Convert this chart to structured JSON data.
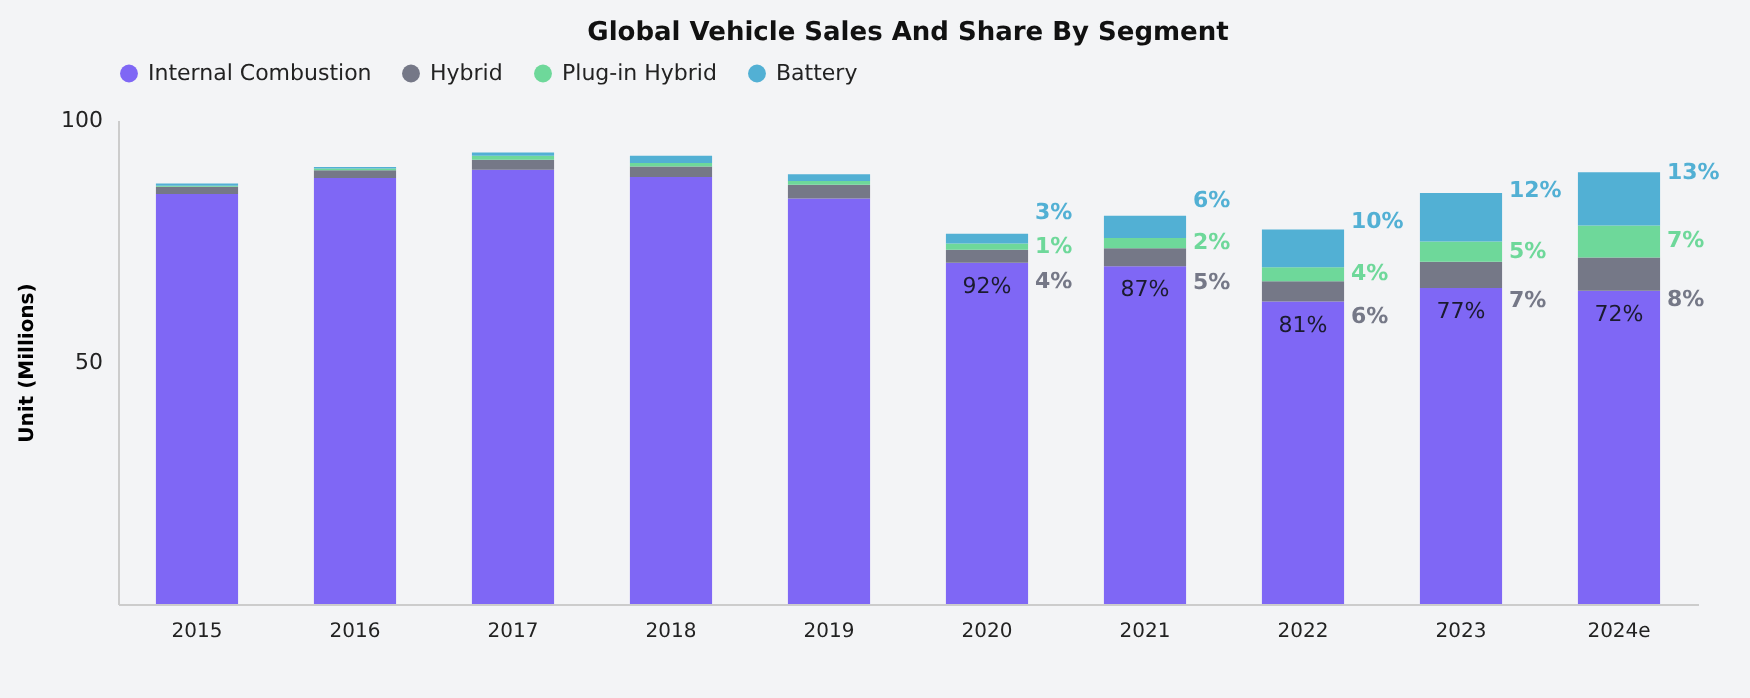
{
  "chart_data": {
    "type": "bar",
    "title": "Global Vehicle Sales And Share By Segment",
    "ylabel": "Unit (Millions)",
    "stacked": true,
    "legend": "top",
    "grid": false,
    "categories": [
      "2015",
      "2016",
      "2017",
      "2018",
      "2019",
      "2020",
      "2021",
      "2022",
      "2023",
      "2024e"
    ],
    "ylim": [
      0,
      100
    ],
    "yticks": [
      50,
      100
    ],
    "series": [
      {
        "name": "Internal Combustion",
        "color": "#7f67f5",
        "values": [
          84.7,
          88.0,
          89.7,
          88.2,
          83.8,
          70.5,
          69.8,
          62.5,
          65.3,
          64.7
        ]
      },
      {
        "name": "Hybrid",
        "color": "#757887",
        "values": [
          1.5,
          1.6,
          2.1,
          2.2,
          2.8,
          2.7,
          3.7,
          4.2,
          5.4,
          6.9
        ]
      },
      {
        "name": "Plug-in Hybrid",
        "color": "#6ed89a",
        "values": [
          0.2,
          0.4,
          0.8,
          0.7,
          0.8,
          1.3,
          2.1,
          2.9,
          4.2,
          6.6
        ]
      },
      {
        "name": "Battery",
        "color": "#52b0d4",
        "values": [
          0.5,
          0.3,
          0.7,
          1.5,
          1.4,
          2.0,
          4.6,
          7.8,
          10.0,
          11.0
        ]
      }
    ],
    "annotations": [
      {
        "text": "92%",
        "x": "2020",
        "y": 70.5
      },
      {
        "text": "4%",
        "x": "2020",
        "y": 73.2
      },
      {
        "text": "1%",
        "x": "2020",
        "y": 74.5
      },
      {
        "text": "3%",
        "x": "2020",
        "y": 76.5
      },
      {
        "text": "87%",
        "x": "2021",
        "y": 69.8
      },
      {
        "text": "5%",
        "x": "2021",
        "y": 73.5
      },
      {
        "text": "2%",
        "x": "2021",
        "y": 75.6
      },
      {
        "text": "6%",
        "x": "2021",
        "y": 80.2
      },
      {
        "text": "81%",
        "x": "2022",
        "y": 62.5
      },
      {
        "text": "6%",
        "x": "2022",
        "y": 66.7
      },
      {
        "text": "4%",
        "x": "2022",
        "y": 69.6
      },
      {
        "text": "10%",
        "x": "2022",
        "y": 77.4
      },
      {
        "text": "77%",
        "x": "2023",
        "y": 65.3
      },
      {
        "text": "7%",
        "x": "2023",
        "y": 70.7
      },
      {
        "text": "5%",
        "x": "2023",
        "y": 74.9
      },
      {
        "text": "12%",
        "x": "2023",
        "y": 84.9
      },
      {
        "text": "72%",
        "x": "2024e",
        "y": 64.7
      },
      {
        "text": "8%",
        "x": "2024e",
        "y": 71.6
      },
      {
        "text": "7%",
        "x": "2024e",
        "y": 78.2
      },
      {
        "text": "13%",
        "x": "2024e",
        "y": 89.2
      }
    ]
  }
}
